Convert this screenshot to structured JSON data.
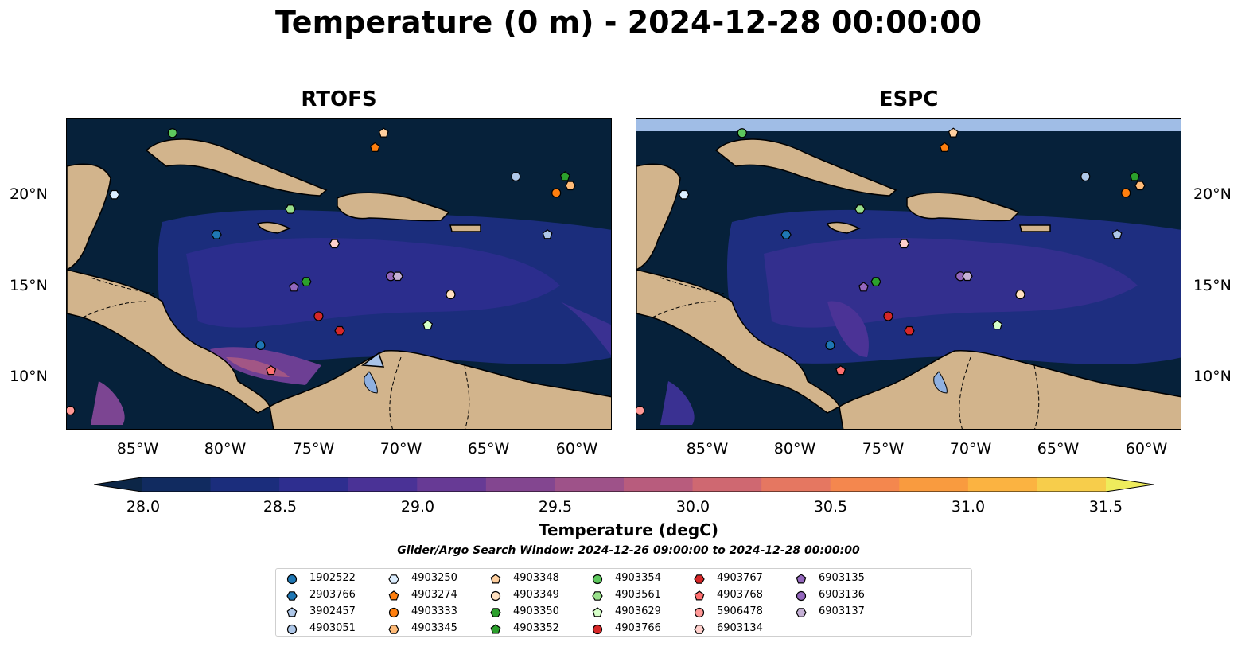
{
  "title": "Temperature (0 m) - 2024-12-28 00:00:00",
  "panels": [
    {
      "title": "RTOFS"
    },
    {
      "title": "ESPC"
    }
  ],
  "lon_labels": [
    "85°W",
    "80°W",
    "75°W",
    "70°W",
    "65°W",
    "60°W"
  ],
  "lat_labels": [
    "20°N",
    "15°N",
    "10°N"
  ],
  "colorbar": {
    "ticks": [
      "28.0",
      "28.5",
      "29.0",
      "29.5",
      "30.0",
      "30.5",
      "31.0",
      "31.5"
    ],
    "label": "Temperature (degC)",
    "colors": [
      "#0c2647",
      "#112b60",
      "#1b2d7c",
      "#2e2e8f",
      "#4a3296",
      "#673a95",
      "#834690",
      "#9e5289",
      "#b85c7d",
      "#cf6871",
      "#e57761",
      "#f4874e",
      "#f99b3f",
      "#fbb341",
      "#f7cd4b",
      "#eeec5c"
    ]
  },
  "search_window": "Glider/Argo Search Window: 2024-12-26 09:00:00 to 2024-12-28 00:00:00",
  "legend": [
    {
      "id": "1902522",
      "marker": "circle",
      "color": "#1f77b4"
    },
    {
      "id": "2903766",
      "marker": "hexagon",
      "color": "#1f77b4"
    },
    {
      "id": "3902457",
      "marker": "pentagon",
      "color": "#aec7e8"
    },
    {
      "id": "4903051",
      "marker": "circle",
      "color": "#aec7e8"
    },
    {
      "id": "4903250",
      "marker": "hexagon",
      "color": "#dceeff"
    },
    {
      "id": "4903274",
      "marker": "pentagon",
      "color": "#ff7f0e"
    },
    {
      "id": "4903333",
      "marker": "circle",
      "color": "#ff7f0e"
    },
    {
      "id": "4903345",
      "marker": "hexagon",
      "color": "#ffbb78"
    },
    {
      "id": "4903348",
      "marker": "pentagon",
      "color": "#ffcf9e"
    },
    {
      "id": "4903349",
      "marker": "circle",
      "color": "#ffe0c0"
    },
    {
      "id": "4903350",
      "marker": "hexagon",
      "color": "#2ca02c"
    },
    {
      "id": "4903352",
      "marker": "pentagon",
      "color": "#2ca02c"
    },
    {
      "id": "4903354",
      "marker": "circle",
      "color": "#5dc85d"
    },
    {
      "id": "4903561",
      "marker": "hexagon",
      "color": "#98df8a"
    },
    {
      "id": "4903629",
      "marker": "pentagon",
      "color": "#d6ffc8"
    },
    {
      "id": "4903766",
      "marker": "circle",
      "color": "#d62728"
    },
    {
      "id": "4903767",
      "marker": "hexagon",
      "color": "#d62728"
    },
    {
      "id": "4903768",
      "marker": "pentagon",
      "color": "#ff6f6f"
    },
    {
      "id": "5906478",
      "marker": "circle",
      "color": "#ff9896"
    },
    {
      "id": "6903134",
      "marker": "hexagon",
      "color": "#ffd0cc"
    },
    {
      "id": "6903135",
      "marker": "pentagon",
      "color": "#9467bd"
    },
    {
      "id": "6903136",
      "marker": "circle",
      "color": "#9467bd"
    },
    {
      "id": "6903137",
      "marker": "hexagon",
      "color": "#c5b0d5"
    }
  ],
  "markers": [
    {
      "id": "4903354",
      "lon": -83.0,
      "lat": 23.4
    },
    {
      "id": "4903348",
      "lon": -71.0,
      "lat": 23.4
    },
    {
      "id": "4903274",
      "lon": -71.5,
      "lat": 22.6
    },
    {
      "id": "4903051",
      "lon": -63.5,
      "lat": 21.0
    },
    {
      "id": "4903352",
      "lon": -60.7,
      "lat": 21.0
    },
    {
      "id": "4903333",
      "lon": -61.2,
      "lat": 20.1
    },
    {
      "id": "4903345",
      "lon": -60.4,
      "lat": 20.5
    },
    {
      "id": "4903250",
      "lon": -86.3,
      "lat": 20.0
    },
    {
      "id": "4903561",
      "lon": -76.3,
      "lat": 19.2
    },
    {
      "id": "2903766",
      "lon": -80.5,
      "lat": 17.8
    },
    {
      "id": "3902457",
      "lon": -61.7,
      "lat": 17.8
    },
    {
      "id": "6903134",
      "lon": -73.8,
      "lat": 17.3
    },
    {
      "id": "6903136",
      "lon": -70.6,
      "lat": 15.5
    },
    {
      "id": "6903137",
      "lon": -70.2,
      "lat": 15.5
    },
    {
      "id": "4903350",
      "lon": -75.4,
      "lat": 15.2
    },
    {
      "id": "6903135",
      "lon": -76.1,
      "lat": 14.9
    },
    {
      "id": "4903349",
      "lon": -67.2,
      "lat": 14.5
    },
    {
      "id": "4903766",
      "lon": -74.7,
      "lat": 13.3
    },
    {
      "id": "4903629",
      "lon": -68.5,
      "lat": 12.8
    },
    {
      "id": "4903767",
      "lon": -73.5,
      "lat": 12.5
    },
    {
      "id": "1902522",
      "lon": -78.0,
      "lat": 11.7
    },
    {
      "id": "4903768",
      "lon": -77.4,
      "lat": 10.3
    },
    {
      "id": "5906478",
      "lon": -88.8,
      "lat": 8.1
    }
  ]
}
